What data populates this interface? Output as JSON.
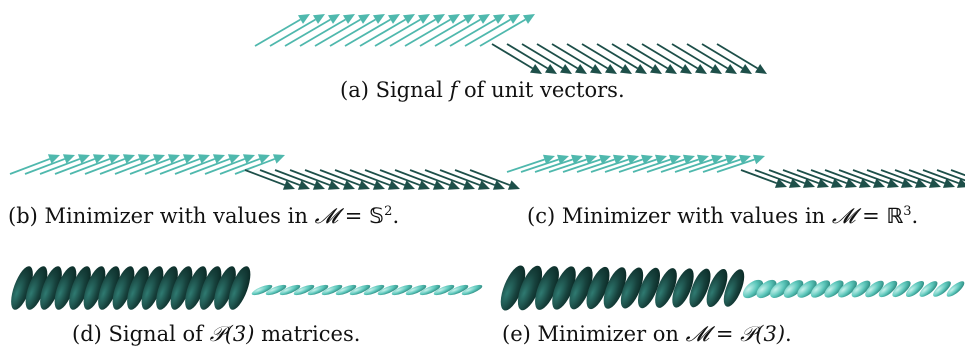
{
  "figure": {
    "panels": [
      {
        "id": "a",
        "caption_prefix": "(a) Signal ",
        "caption_var": "f",
        "caption_suffix": " of unit vectors."
      },
      {
        "id": "b",
        "caption_prefix": "(b) Minimizer with values in ",
        "caption_space": "𝓜",
        "caption_eq": " = ",
        "caption_set": "𝕊",
        "caption_exp": "2",
        "caption_suffix": "."
      },
      {
        "id": "c",
        "caption_prefix": "(c) Minimizer with values in ",
        "caption_space": "𝓜",
        "caption_eq": " = ",
        "caption_set": "ℝ",
        "caption_exp": "3",
        "caption_suffix": "."
      },
      {
        "id": "d",
        "caption_prefix": "(d) Signal of ",
        "caption_set": "𝒫(3)",
        "caption_suffix": " matrices."
      },
      {
        "id": "e",
        "caption_prefix": "(e) Minimizer on ",
        "caption_space": "𝓜",
        "caption_eq": " = ",
        "caption_set": "𝒫(3)",
        "caption_suffix": "."
      }
    ],
    "colors": {
      "arrow_light": "#4fb8ad",
      "arrow_dark": "#1d4f49",
      "ellipsoid_dark": "#17423d",
      "ellipsoid_light": "#5cc7bb"
    }
  }
}
